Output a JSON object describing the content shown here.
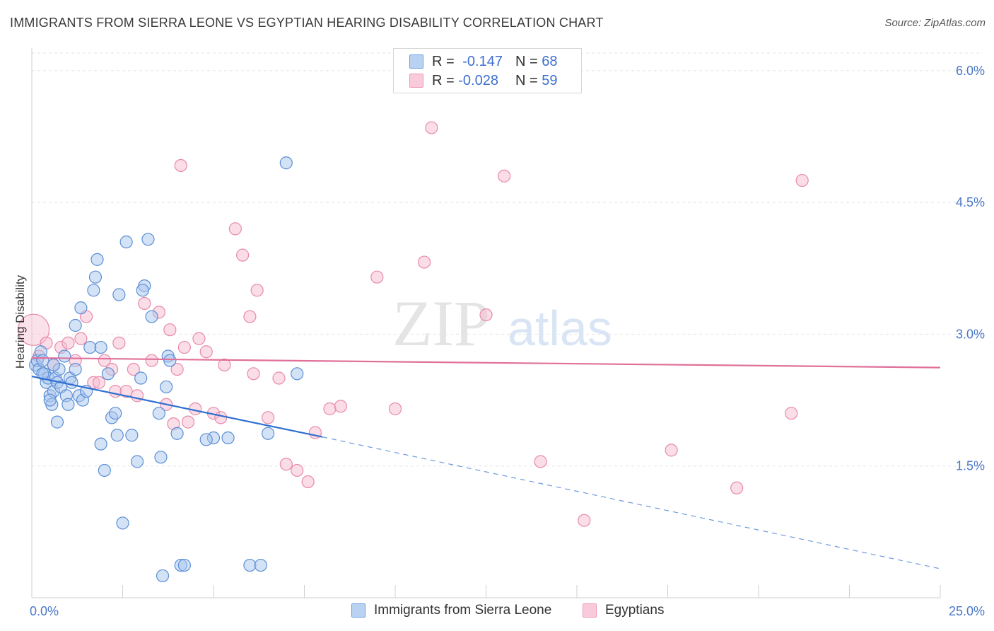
{
  "title": "IMMIGRANTS FROM SIERRA LEONE VS EGYPTIAN HEARING DISABILITY CORRELATION CHART",
  "source": "Source: ZipAtlas.com",
  "watermark": {
    "zip": "ZIP",
    "atlas": "atlas"
  },
  "colors": {
    "blue_fill": "#a9c6ee",
    "blue_stroke": "#5b8fd6",
    "blue_line": "#2f6fd0",
    "pink_fill": "#f6bcd0",
    "pink_stroke": "#e88aaa",
    "pink_line": "#e0709a",
    "grid": "#e3e3e3",
    "tick_text": "#4a78c8"
  },
  "legend_top": {
    "rows": [
      {
        "r_label": "R =",
        "r_value": "-0.147",
        "n_label": "N =",
        "n_value": "68"
      },
      {
        "r_label": "R =",
        "r_value": "-0.028",
        "n_label": "N =",
        "n_value": "59"
      }
    ]
  },
  "chart_data": {
    "type": "scatter",
    "title": "IMMIGRANTS FROM SIERRA LEONE VS EGYPTIAN HEARING DISABILITY CORRELATION CHART",
    "xlabel": "",
    "ylabel": "Hearing Disability",
    "xlim": [
      0,
      25
    ],
    "ylim": [
      0,
      6.2
    ],
    "y_ticks": [
      1.5,
      3.0,
      4.5,
      6.0
    ],
    "y_tick_labels": [
      "1.5%",
      "3.0%",
      "4.5%",
      "6.0%"
    ],
    "x_tick_labels": [
      "0.0%",
      "25.0%"
    ],
    "grid": true,
    "legend_position": "bottom",
    "series": [
      {
        "name": "Immigrants from Sierra Leone",
        "r": -0.147,
        "n": 68,
        "trend": {
          "x0": 0,
          "y0": 2.52,
          "x1": 8.0,
          "y1": 1.83,
          "dashed_to_x": 25,
          "dashed_to_y": 0.33
        },
        "points": [
          [
            0.1,
            2.65
          ],
          [
            0.15,
            2.7
          ],
          [
            0.2,
            2.6
          ],
          [
            0.25,
            2.8
          ],
          [
            0.3,
            2.7
          ],
          [
            0.35,
            2.55
          ],
          [
            0.4,
            2.45
          ],
          [
            0.45,
            2.5
          ],
          [
            0.5,
            2.3
          ],
          [
            0.55,
            2.2
          ],
          [
            0.6,
            2.35
          ],
          [
            0.65,
            2.5
          ],
          [
            0.7,
            2.45
          ],
          [
            0.75,
            2.6
          ],
          [
            0.8,
            2.4
          ],
          [
            0.9,
            2.75
          ],
          [
            0.95,
            2.3
          ],
          [
            1.0,
            2.2
          ],
          [
            1.05,
            2.5
          ],
          [
            1.1,
            2.45
          ],
          [
            1.2,
            2.6
          ],
          [
            1.3,
            2.3
          ],
          [
            1.4,
            2.25
          ],
          [
            1.5,
            2.35
          ],
          [
            1.6,
            2.85
          ],
          [
            1.7,
            3.5
          ],
          [
            1.75,
            3.65
          ],
          [
            1.8,
            3.85
          ],
          [
            1.9,
            1.75
          ],
          [
            2.0,
            1.45
          ],
          [
            2.1,
            2.55
          ],
          [
            2.2,
            2.05
          ],
          [
            2.3,
            2.1
          ],
          [
            2.35,
            1.85
          ],
          [
            2.4,
            3.45
          ],
          [
            2.5,
            0.85
          ],
          [
            2.6,
            4.05
          ],
          [
            2.75,
            1.85
          ],
          [
            2.9,
            1.55
          ],
          [
            3.0,
            2.5
          ],
          [
            3.1,
            3.55
          ],
          [
            3.2,
            4.08
          ],
          [
            3.3,
            3.2
          ],
          [
            3.5,
            2.1
          ],
          [
            3.55,
            1.6
          ],
          [
            3.6,
            0.25
          ],
          [
            3.7,
            2.4
          ],
          [
            3.75,
            2.75
          ],
          [
            4.0,
            1.87
          ],
          [
            4.1,
            0.37
          ],
          [
            4.2,
            0.37
          ],
          [
            3.05,
            3.5
          ],
          [
            3.8,
            2.7
          ],
          [
            5.4,
            1.82
          ],
          [
            6.0,
            0.37
          ],
          [
            5.0,
            1.82
          ],
          [
            4.8,
            1.8
          ],
          [
            6.5,
            1.87
          ],
          [
            7.3,
            2.55
          ],
          [
            0.3,
            2.55
          ],
          [
            0.6,
            2.65
          ],
          [
            1.2,
            3.1
          ],
          [
            0.5,
            2.25
          ],
          [
            0.7,
            2.0
          ],
          [
            1.9,
            2.85
          ],
          [
            6.3,
            0.37
          ],
          [
            7.0,
            4.95
          ],
          [
            1.35,
            3.3
          ]
        ]
      },
      {
        "name": "Egyptians",
        "r": -0.028,
        "n": 59,
        "trend": {
          "x0": 0,
          "y0": 2.73,
          "x1": 25,
          "y1": 2.62
        },
        "points": [
          [
            0.05,
            3.05
          ],
          [
            0.2,
            2.75
          ],
          [
            0.4,
            2.9
          ],
          [
            0.6,
            2.65
          ],
          [
            0.8,
            2.85
          ],
          [
            1.0,
            2.9
          ],
          [
            1.2,
            2.7
          ],
          [
            1.35,
            2.95
          ],
          [
            1.5,
            3.2
          ],
          [
            1.7,
            2.45
          ],
          [
            1.85,
            2.45
          ],
          [
            2.0,
            2.7
          ],
          [
            2.2,
            2.6
          ],
          [
            2.3,
            2.35
          ],
          [
            2.4,
            2.9
          ],
          [
            2.6,
            2.35
          ],
          [
            2.8,
            2.6
          ],
          [
            2.9,
            2.3
          ],
          [
            3.1,
            3.35
          ],
          [
            3.3,
            2.7
          ],
          [
            3.5,
            3.25
          ],
          [
            3.7,
            2.2
          ],
          [
            3.8,
            3.05
          ],
          [
            4.0,
            2.6
          ],
          [
            4.2,
            2.85
          ],
          [
            4.3,
            2.0
          ],
          [
            4.5,
            2.15
          ],
          [
            4.6,
            2.95
          ],
          [
            4.8,
            2.8
          ],
          [
            5.0,
            2.1
          ],
          [
            5.2,
            2.05
          ],
          [
            5.3,
            2.65
          ],
          [
            5.6,
            4.2
          ],
          [
            5.8,
            3.9
          ],
          [
            6.0,
            3.2
          ],
          [
            6.2,
            3.5
          ],
          [
            6.5,
            2.05
          ],
          [
            6.8,
            2.5
          ],
          [
            7.0,
            1.52
          ],
          [
            7.3,
            1.45
          ],
          [
            7.6,
            1.32
          ],
          [
            7.8,
            1.88
          ],
          [
            8.2,
            2.15
          ],
          [
            8.5,
            2.18
          ],
          [
            9.5,
            3.65
          ],
          [
            10.0,
            2.15
          ],
          [
            10.8,
            3.82
          ],
          [
            11.0,
            5.35
          ],
          [
            12.5,
            3.22
          ],
          [
            13.0,
            4.8
          ],
          [
            14.0,
            1.55
          ],
          [
            15.2,
            0.88
          ],
          [
            17.6,
            1.68
          ],
          [
            19.4,
            1.25
          ],
          [
            20.9,
            2.1
          ],
          [
            21.2,
            4.75
          ],
          [
            4.1,
            4.92
          ],
          [
            3.9,
            1.98
          ],
          [
            6.1,
            2.55
          ]
        ]
      }
    ]
  },
  "legend_bottom": [
    {
      "label": "Immigrants from Sierra Leone"
    },
    {
      "label": "Egyptians"
    }
  ]
}
